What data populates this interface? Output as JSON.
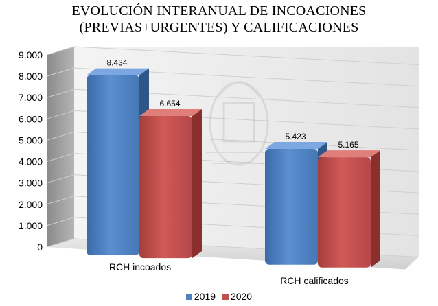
{
  "chart_data": {
    "type": "bar",
    "title_lines": [
      "EVOLUCIÓN INTERANUAL DE INCOACIONES",
      "(PREVIAS+URGENTES) Y CALIFICACIONES"
    ],
    "categories": [
      "RCH incoados",
      "RCH calificados"
    ],
    "series": [
      {
        "name": "2019",
        "values": [
          8434,
          5423
        ],
        "labels": [
          "8.434",
          "5.423"
        ],
        "color": "#4f81bd"
      },
      {
        "name": "2020",
        "values": [
          6654,
          5165
        ],
        "labels": [
          "6.654",
          "5.165"
        ],
        "color": "#c0504d"
      }
    ],
    "ylim": [
      0,
      9000
    ],
    "y_ticks": [
      {
        "value": 0,
        "label": "0"
      },
      {
        "value": 1000,
        "label": "1.000"
      },
      {
        "value": 2000,
        "label": "2.000"
      },
      {
        "value": 3000,
        "label": "3.000"
      },
      {
        "value": 4000,
        "label": "4.000"
      },
      {
        "value": 5000,
        "label": "5.000"
      },
      {
        "value": 6000,
        "label": "6.000"
      },
      {
        "value": 7000,
        "label": "7.000"
      },
      {
        "value": 8000,
        "label": "8.000"
      },
      {
        "value": 9000,
        "label": "9.000"
      }
    ],
    "grid": true,
    "legend": "bottom",
    "style": "3d-clustered-column"
  }
}
